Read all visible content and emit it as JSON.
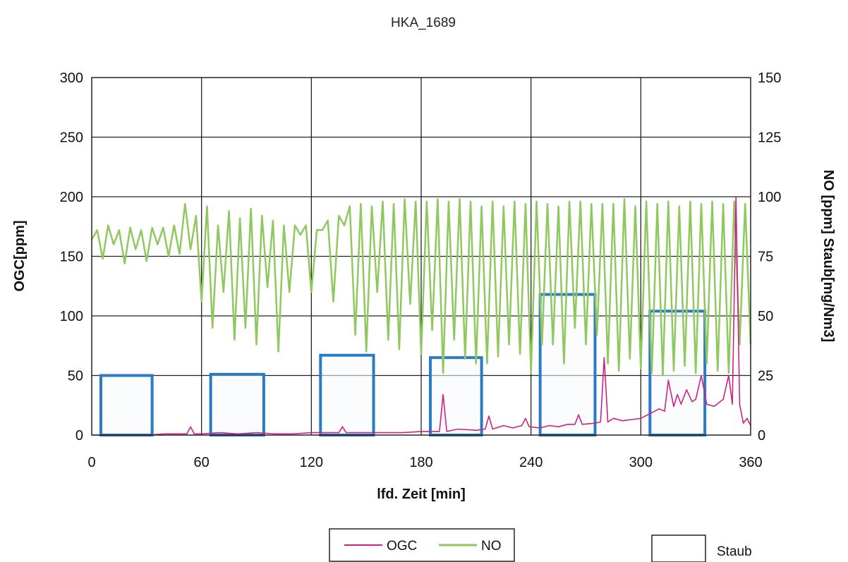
{
  "chart_data": {
    "type": "line",
    "title": "HKA_1689",
    "xlabel": "lfd. Zeit [min]",
    "ylabel_left": "OGC[ppm]",
    "ylabel_right": "NO [ppm] Staub[mg/Nm3]",
    "xlim": [
      0,
      360
    ],
    "ylim_left": [
      0,
      300
    ],
    "ylim_right": [
      0,
      150
    ],
    "x_ticks": [
      "0",
      "60",
      "120",
      "180",
      "240",
      "300",
      "360"
    ],
    "y_left_ticks": [
      "0",
      "50",
      "100",
      "150",
      "200",
      "250",
      "300"
    ],
    "y_right_ticks": [
      "0",
      "25",
      "50",
      "75",
      "100",
      "125",
      "150"
    ],
    "grid": true,
    "legend": [
      {
        "name": "OGC",
        "color": "#cc2288"
      },
      {
        "name": "NO",
        "color": "#8fc85e"
      },
      {
        "name": "Staub",
        "color": "#2b7bc4"
      }
    ],
    "series": [
      {
        "name": "NO",
        "axis": "right",
        "color": "#8fc85e",
        "x": [
          0,
          3,
          6,
          9,
          12,
          15,
          18,
          21,
          24,
          27,
          30,
          33,
          36,
          39,
          42,
          45,
          48,
          51,
          54,
          57,
          60,
          63,
          66,
          69,
          72,
          75,
          78,
          81,
          84,
          87,
          90,
          93,
          96,
          99,
          102,
          105,
          108,
          111,
          114,
          117,
          120,
          123,
          126,
          129,
          132,
          135,
          138,
          141,
          144,
          147,
          150,
          153,
          156,
          159,
          162,
          165,
          168,
          171,
          174,
          177,
          180,
          183,
          186,
          189,
          192,
          195,
          198,
          201,
          204,
          207,
          210,
          213,
          216,
          219,
          222,
          225,
          228,
          231,
          234,
          237,
          240,
          243,
          246,
          249,
          252,
          255,
          258,
          261,
          264,
          267,
          270,
          273,
          276,
          279,
          282,
          285,
          288,
          291,
          294,
          297,
          300,
          303,
          306,
          309,
          312,
          315,
          318,
          321,
          324,
          327,
          330,
          333,
          336,
          339,
          342,
          345,
          348,
          351,
          354,
          357,
          360
        ],
        "y": [
          82,
          86,
          74,
          88,
          80,
          86,
          72,
          87,
          78,
          86,
          73,
          87,
          80,
          87,
          75,
          88,
          76,
          97,
          78,
          92,
          56,
          96,
          45,
          88,
          60,
          94,
          40,
          91,
          45,
          95,
          38,
          92,
          62,
          90,
          35,
          88,
          60,
          88,
          84,
          88,
          60,
          86,
          86,
          90,
          56,
          92,
          88,
          96,
          42,
          97,
          35,
          96,
          60,
          98,
          40,
          97,
          36,
          99,
          55,
          98,
          34,
          98,
          44,
          99,
          26,
          98,
          40,
          99,
          32,
          98,
          30,
          96,
          30,
          98,
          33,
          96,
          38,
          98,
          34,
          97,
          26,
          98,
          38,
          97,
          38,
          96,
          30,
          98,
          45,
          98,
          38,
          97,
          42,
          97,
          30,
          97,
          27,
          99,
          32,
          96,
          28,
          98,
          26,
          97,
          25,
          98,
          27,
          96,
          29,
          98,
          26,
          97,
          30,
          98,
          27,
          97,
          26,
          98,
          38,
          97,
          38
        ],
        "values": [
          82,
          86,
          74,
          88,
          80,
          86,
          72,
          87,
          78,
          86,
          73,
          87,
          80,
          87,
          75,
          88,
          76,
          97,
          78,
          92,
          56,
          96,
          45,
          88,
          60,
          94,
          40,
          91,
          45,
          95,
          38,
          92,
          62,
          90,
          35,
          88,
          60,
          88,
          84,
          88,
          60,
          86,
          86,
          90,
          56,
          92,
          88,
          96,
          42,
          97,
          35,
          96,
          60,
          98,
          40,
          97,
          36,
          99,
          55,
          98,
          34,
          98,
          44,
          99,
          26,
          98,
          40,
          99,
          32,
          98,
          30,
          96,
          30,
          98,
          33,
          96,
          38,
          98,
          34,
          97,
          26,
          98,
          38,
          97,
          38,
          96,
          30,
          98,
          45,
          98,
          38,
          97,
          42,
          97,
          30,
          97,
          27,
          99,
          32,
          96,
          28,
          98,
          26,
          97,
          25,
          98,
          27,
          96,
          29,
          98,
          26,
          97,
          30,
          98,
          27,
          97,
          26,
          98,
          38,
          97,
          38
        ]
      },
      {
        "name": "OGC",
        "axis": "left",
        "color": "#cc2288",
        "x": [
          0,
          10,
          20,
          30,
          40,
          50,
          52,
          54,
          56,
          60,
          70,
          80,
          90,
          100,
          110,
          120,
          130,
          135,
          137,
          139,
          145,
          150,
          160,
          170,
          180,
          185,
          190,
          192,
          194,
          200,
          210,
          215,
          217,
          219,
          225,
          230,
          235,
          237,
          239,
          245,
          250,
          255,
          260,
          264,
          266,
          268,
          275,
          278,
          280,
          282,
          285,
          290,
          295,
          300,
          305,
          310,
          313,
          315,
          318,
          320,
          322,
          325,
          328,
          330,
          333,
          336,
          340,
          345,
          348,
          350,
          352,
          354,
          356,
          358,
          360
        ],
        "y": [
          0,
          0,
          0,
          0,
          1,
          1,
          1,
          7,
          1,
          1,
          2,
          1,
          2,
          1,
          1,
          2,
          2,
          2,
          7,
          2,
          2,
          2,
          2,
          2,
          3,
          3,
          3,
          34,
          3,
          5,
          4,
          5,
          16,
          5,
          8,
          6,
          8,
          14,
          7,
          6,
          8,
          7,
          9,
          9,
          17,
          9,
          10,
          11,
          65,
          11,
          14,
          12,
          13,
          14,
          18,
          22,
          20,
          46,
          24,
          34,
          26,
          38,
          28,
          30,
          50,
          26,
          24,
          30,
          50,
          26,
          200,
          26,
          10,
          14,
          8
        ],
        "values": [
          0,
          0,
          0,
          0,
          1,
          1,
          1,
          7,
          1,
          1,
          2,
          1,
          2,
          1,
          1,
          2,
          2,
          2,
          7,
          2,
          2,
          2,
          2,
          2,
          3,
          3,
          3,
          34,
          3,
          5,
          4,
          5,
          16,
          5,
          8,
          6,
          8,
          14,
          7,
          6,
          8,
          7,
          9,
          9,
          17,
          9,
          10,
          11,
          65,
          11,
          14,
          12,
          13,
          14,
          18,
          22,
          20,
          46,
          24,
          34,
          26,
          38,
          28,
          30,
          50,
          26,
          24,
          30,
          50,
          26,
          200,
          26,
          10,
          14,
          8
        ]
      },
      {
        "name": "Staub",
        "axis": "right",
        "style": "box",
        "color": "#2b7bc4",
        "intervals": [
          [
            5,
            33,
            25
          ],
          [
            65,
            94,
            25.5
          ],
          [
            125,
            154,
            33.5
          ],
          [
            185,
            213,
            32.5
          ],
          [
            245,
            275,
            59
          ],
          [
            305,
            335,
            52
          ]
        ]
      }
    ]
  }
}
